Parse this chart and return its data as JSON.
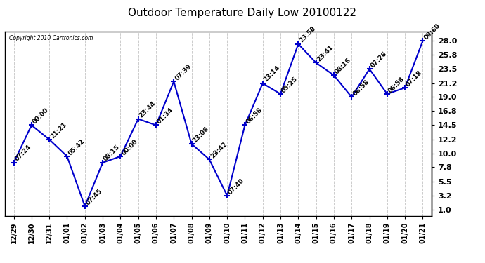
{
  "title": "Outdoor Temperature Daily Low 20100122",
  "copyright": "Copyright 2010 Cartronics.com",
  "line_color": "#0000CC",
  "marker": "+",
  "marker_size": 6,
  "marker_linewidth": 1.5,
  "line_width": 1.5,
  "bg_color": "#FFFFFF",
  "grid_color": "#CCCCCC",
  "dates": [
    "12/29",
    "12/30",
    "12/31",
    "01/01",
    "01/02",
    "01/03",
    "01/04",
    "01/05",
    "01/06",
    "01/07",
    "01/08",
    "01/09",
    "01/10",
    "01/11",
    "01/12",
    "01/13",
    "01/14",
    "01/15",
    "01/16",
    "01/17",
    "01/18",
    "01/19",
    "01/20",
    "01/21"
  ],
  "times": [
    "07:24",
    "00:00",
    "21:21",
    "05:42",
    "07:45",
    "08:15",
    "00:00",
    "23:44",
    "01:34",
    "07:39",
    "23:06",
    "23:42",
    "07:40",
    "06:58",
    "23:14",
    "05:25",
    "23:58",
    "23:41",
    "08:16",
    "06:58",
    "07:26",
    "06:58",
    "07:18",
    "09:60"
  ],
  "values": [
    8.5,
    14.5,
    12.2,
    9.5,
    1.5,
    8.5,
    9.5,
    15.5,
    14.5,
    21.5,
    11.5,
    9.0,
    3.2,
    14.5,
    21.2,
    19.5,
    27.5,
    24.5,
    22.5,
    19.0,
    23.5,
    19.5,
    20.5,
    28.0
  ],
  "yticks": [
    1.0,
    3.2,
    5.5,
    7.8,
    10.0,
    12.2,
    14.5,
    16.8,
    19.0,
    21.2,
    23.5,
    25.8,
    28.0
  ],
  "ylim": [
    0.0,
    29.5
  ],
  "xlim": [
    -0.5,
    23.5
  ],
  "title_fontsize": 11,
  "label_fontsize": 7,
  "ytick_fontsize": 8,
  "xtick_fontsize": 7,
  "annot_fontsize": 6.5
}
